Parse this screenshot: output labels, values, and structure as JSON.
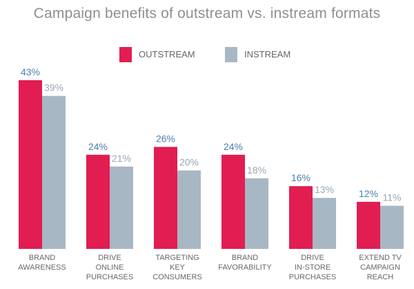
{
  "title": "Campaign benefits of outstream vs. instream formats",
  "colors": {
    "outstream": "#e21d52",
    "instream": "#a8b7c4",
    "label_outstream": "#4a7fb0",
    "label_instream": "#9aa6b1",
    "category": "#666666"
  },
  "chart_data": {
    "type": "bar",
    "title": "Campaign benefits of outstream vs. instream formats",
    "categories": [
      [
        "BRAND",
        "AWARENESS"
      ],
      [
        "DRIVE",
        "ONLINE",
        "PURCHASES"
      ],
      [
        "TARGETING",
        "KEY",
        "CONSUMERS"
      ],
      [
        "BRAND",
        "FAVORABILITY"
      ],
      [
        "DRIVE",
        "IN-STORE",
        "PURCHASES"
      ],
      [
        "EXTEND TV",
        "CAMPAIGN",
        "REACH"
      ]
    ],
    "series": [
      {
        "name": "OUTSTREAM",
        "values": [
          43,
          24,
          26,
          24,
          16,
          12
        ],
        "labels": [
          "43%",
          "24%",
          "26%",
          "24%",
          "16%",
          "12%"
        ]
      },
      {
        "name": "INSTREAM",
        "values": [
          39,
          21,
          20,
          18,
          13,
          11
        ],
        "labels": [
          "39%",
          "21%",
          "20%",
          "18%",
          "13%",
          "11%"
        ]
      }
    ],
    "ylim": [
      0,
      43
    ],
    "grid": false,
    "legend": "top-center"
  }
}
